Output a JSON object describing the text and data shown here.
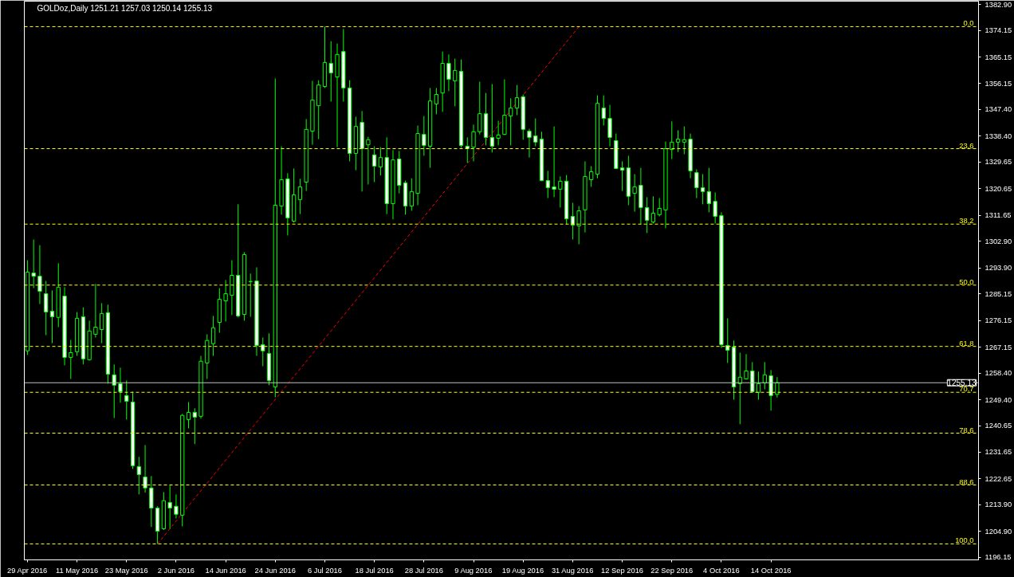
{
  "chart_data": {
    "type": "candlestick",
    "title": "GOLDoz,Daily  1251.21 1257.03 1250.14 1255.13",
    "color": "#00ff00",
    "categories": [
      "29 Apr 2016",
      null,
      null,
      null,
      null,
      null,
      null,
      null,
      "11 May 2016",
      null,
      null,
      null,
      null,
      null,
      null,
      null,
      "23 May 2016",
      null,
      null,
      null,
      null,
      null,
      null,
      null,
      "2 Jun 2016",
      null,
      null,
      null,
      null,
      null,
      null,
      null,
      "14 Jun 2016",
      null,
      null,
      null,
      null,
      null,
      null,
      null,
      "24 Jun 2016",
      null,
      null,
      null,
      null,
      null,
      null,
      null,
      "6 Jul 2016",
      null,
      null,
      null,
      null,
      null,
      null,
      null,
      "18 Jul 2016",
      null,
      null,
      null,
      null,
      null,
      null,
      null,
      "28 Jul 2016",
      null,
      null,
      null,
      null,
      null,
      null,
      null,
      "9 Aug 2016",
      null,
      null,
      null,
      null,
      null,
      null,
      null,
      "19 Aug 2016",
      null,
      null,
      null,
      null,
      null,
      null,
      null,
      "31 Aug 2016",
      null,
      null,
      null,
      null,
      null,
      null,
      null,
      "12 Sep 2016",
      null,
      null,
      null,
      null,
      null,
      null,
      null,
      "22 Sep 2016",
      null,
      null,
      null,
      null,
      null,
      null,
      null,
      "4 Oct 2016",
      null,
      null,
      null,
      null,
      null,
      null,
      null,
      "14 Oct 2016",
      null,
      null,
      null,
      null,
      null,
      null,
      null,
      null,
      null,
      null,
      null,
      null,
      null,
      null,
      null,
      null,
      null,
      null,
      null,
      null,
      null,
      null,
      null,
      null,
      null,
      null,
      null,
      null,
      null,
      null,
      null,
      null,
      null
    ],
    "ohlc": [
      [
        1265.9,
        1296.5,
        1264.5,
        1292.5
      ],
      [
        1292.2,
        1303.5,
        1287.1,
        1291.1
      ],
      [
        1291.1,
        1301.6,
        1281.7,
        1286.0
      ],
      [
        1285.2,
        1289.5,
        1271.2,
        1279.0
      ],
      [
        1279.3,
        1286.3,
        1268.5,
        1277.4
      ],
      [
        1277.2,
        1295.5,
        1273.9,
        1287.4
      ],
      [
        1284.4,
        1287.4,
        1261.0,
        1263.7
      ],
      [
        1263.7,
        1269.6,
        1256.4,
        1265.3
      ],
      [
        1265.6,
        1279.0,
        1264.2,
        1276.9
      ],
      [
        1277.4,
        1280.6,
        1261.3,
        1263.2
      ],
      [
        1262.9,
        1276.1,
        1262.6,
        1272.6
      ],
      [
        1271.5,
        1288.5,
        1270.4,
        1273.9
      ],
      [
        1273.1,
        1282.0,
        1268.5,
        1278.5
      ],
      [
        1278.8,
        1281.5,
        1254.8,
        1258.0
      ],
      [
        1257.8,
        1261.3,
        1243.2,
        1254.3
      ],
      [
        1254.8,
        1260.2,
        1248.4,
        1252.1
      ],
      [
        1250.8,
        1255.9,
        1242.7,
        1248.9
      ],
      [
        1248.6,
        1252.1,
        1226.0,
        1227.1
      ],
      [
        1226.8,
        1230.1,
        1217.4,
        1224.1
      ],
      [
        1223.3,
        1234.1,
        1218.0,
        1219.6
      ],
      [
        1219.6,
        1223.6,
        1206.4,
        1212.8
      ],
      [
        1212.8,
        1213.4,
        1200.7,
        1205.0
      ],
      [
        1205.8,
        1218.2,
        1205.4,
        1215.3
      ],
      [
        1214.7,
        1220.4,
        1205.8,
        1212.8
      ],
      [
        1213.4,
        1217.4,
        1209.3,
        1210.7
      ],
      [
        1210.4,
        1244.6,
        1206.6,
        1244.1
      ],
      [
        1242.7,
        1248.6,
        1239.7,
        1245.1
      ],
      [
        1245.1,
        1246.5,
        1234.4,
        1243.5
      ],
      [
        1243.8,
        1264.2,
        1243.0,
        1262.4
      ],
      [
        1261.8,
        1271.5,
        1256.4,
        1269.4
      ],
      [
        1268.3,
        1277.7,
        1264.2,
        1273.7
      ],
      [
        1275.5,
        1287.1,
        1272.0,
        1283.3
      ],
      [
        1282.8,
        1289.8,
        1275.8,
        1285.2
      ],
      [
        1284.7,
        1296.5,
        1278.0,
        1291.4
      ],
      [
        1291.4,
        1315.4,
        1277.2,
        1277.7
      ],
      [
        1278.2,
        1299.2,
        1276.1,
        1298.4
      ],
      [
        1289.3,
        1292.0,
        1277.4,
        1289.3
      ],
      [
        1289.5,
        1294.1,
        1264.2,
        1267.7
      ],
      [
        1268.0,
        1270.4,
        1260.7,
        1265.9
      ],
      [
        1265.0,
        1271.8,
        1254.3,
        1255.9
      ],
      [
        1253.7,
        1357.9,
        1250.2,
        1315.1
      ],
      [
        1314.8,
        1335.0,
        1311.9,
        1323.7
      ],
      [
        1324.0,
        1325.9,
        1304.9,
        1310.8
      ],
      [
        1309.7,
        1327.5,
        1309.2,
        1318.6
      ],
      [
        1317.0,
        1324.0,
        1312.1,
        1321.3
      ],
      [
        1322.9,
        1344.2,
        1319.9,
        1340.7
      ],
      [
        1340.1,
        1357.1,
        1335.5,
        1350.6
      ],
      [
        1348.7,
        1357.3,
        1337.4,
        1355.7
      ],
      [
        1355.2,
        1375.4,
        1354.7,
        1363.3
      ],
      [
        1363.0,
        1370.5,
        1350.1,
        1359.8
      ],
      [
        1358.4,
        1369.7,
        1334.7,
        1366.0
      ],
      [
        1367.0,
        1374.6,
        1350.1,
        1354.7
      ],
      [
        1354.7,
        1357.3,
        1329.9,
        1332.6
      ],
      [
        1332.6,
        1345.0,
        1326.9,
        1341.7
      ],
      [
        1343.1,
        1346.9,
        1319.7,
        1334.2
      ],
      [
        1335.5,
        1338.2,
        1322.1,
        1337.2
      ],
      [
        1332.1,
        1335.0,
        1322.9,
        1328.3
      ],
      [
        1328.0,
        1334.7,
        1325.1,
        1331.2
      ],
      [
        1331.2,
        1338.0,
        1312.1,
        1315.6
      ],
      [
        1315.6,
        1333.7,
        1310.3,
        1330.4
      ],
      [
        1330.7,
        1333.4,
        1319.1,
        1321.8
      ],
      [
        1322.6,
        1323.4,
        1311.9,
        1314.8
      ],
      [
        1314.8,
        1324.2,
        1313.2,
        1319.7
      ],
      [
        1319.1,
        1342.0,
        1315.1,
        1339.3
      ],
      [
        1339.0,
        1345.2,
        1331.8,
        1335.3
      ],
      [
        1335.0,
        1354.7,
        1327.7,
        1350.3
      ],
      [
        1349.3,
        1354.7,
        1345.8,
        1352.5
      ],
      [
        1353.0,
        1367.0,
        1346.6,
        1363.0
      ],
      [
        1363.0,
        1366.0,
        1353.6,
        1357.6
      ],
      [
        1357.1,
        1364.6,
        1348.5,
        1360.6
      ],
      [
        1360.3,
        1364.3,
        1334.5,
        1335.3
      ],
      [
        1335.0,
        1338.0,
        1329.4,
        1334.2
      ],
      [
        1334.7,
        1342.3,
        1329.9,
        1339.9
      ],
      [
        1339.9,
        1356.8,
        1339.0,
        1346.0
      ],
      [
        1346.0,
        1353.0,
        1335.3,
        1338.0
      ],
      [
        1338.0,
        1356.0,
        1332.9,
        1335.0
      ],
      [
        1337.7,
        1343.6,
        1335.3,
        1338.8
      ],
      [
        1339.0,
        1357.6,
        1338.8,
        1345.5
      ],
      [
        1345.2,
        1351.2,
        1335.3,
        1347.9
      ],
      [
        1347.9,
        1355.7,
        1345.5,
        1351.4
      ],
      [
        1351.7,
        1352.5,
        1337.2,
        1340.7
      ],
      [
        1340.1,
        1340.9,
        1331.2,
        1338.0
      ],
      [
        1338.5,
        1344.4,
        1335.0,
        1336.4
      ],
      [
        1337.4,
        1339.9,
        1323.2,
        1323.4
      ],
      [
        1323.4,
        1326.7,
        1317.5,
        1321.0
      ],
      [
        1321.3,
        1341.7,
        1317.8,
        1320.5
      ],
      [
        1320.5,
        1324.8,
        1314.3,
        1323.2
      ],
      [
        1323.2,
        1325.3,
        1308.6,
        1310.5
      ],
      [
        1311.3,
        1315.9,
        1303.5,
        1308.4
      ],
      [
        1308.1,
        1314.8,
        1301.9,
        1313.2
      ],
      [
        1313.5,
        1329.9,
        1305.9,
        1324.8
      ],
      [
        1323.7,
        1328.3,
        1321.3,
        1326.4
      ],
      [
        1325.6,
        1352.2,
        1324.2,
        1349.5
      ],
      [
        1347.9,
        1352.2,
        1342.0,
        1344.4
      ],
      [
        1344.4,
        1349.0,
        1335.0,
        1338.0
      ],
      [
        1336.9,
        1339.3,
        1327.5,
        1327.5
      ],
      [
        1327.7,
        1329.9,
        1319.9,
        1326.9
      ],
      [
        1327.7,
        1331.8,
        1315.1,
        1318.1
      ],
      [
        1319.1,
        1325.6,
        1312.9,
        1321.3
      ],
      [
        1321.8,
        1327.7,
        1308.6,
        1314.3
      ],
      [
        1314.3,
        1317.8,
        1305.7,
        1310.0
      ],
      [
        1309.4,
        1318.1,
        1308.9,
        1312.4
      ],
      [
        1311.9,
        1317.5,
        1311.3,
        1314.0
      ],
      [
        1313.5,
        1336.6,
        1307.3,
        1334.2
      ],
      [
        1333.9,
        1343.4,
        1330.7,
        1336.4
      ],
      [
        1336.4,
        1340.4,
        1333.1,
        1337.4
      ],
      [
        1336.4,
        1341.7,
        1332.3,
        1337.2
      ],
      [
        1337.4,
        1339.3,
        1324.2,
        1326.7
      ],
      [
        1326.1,
        1327.2,
        1317.5,
        1321.0
      ],
      [
        1321.0,
        1325.6,
        1315.4,
        1319.7
      ],
      [
        1319.7,
        1327.7,
        1312.7,
        1315.6
      ],
      [
        1316.4,
        1319.4,
        1308.9,
        1311.3
      ],
      [
        1311.6,
        1312.7,
        1266.9,
        1268.0
      ],
      [
        1267.7,
        1276.9,
        1261.8,
        1266.1
      ],
      [
        1267.2,
        1269.4,
        1249.4,
        1253.7
      ],
      [
        1254.8,
        1265.3,
        1241.1,
        1257.0
      ],
      [
        1256.4,
        1264.8,
        1256.2,
        1259.1
      ],
      [
        1259.1,
        1262.1,
        1252.1,
        1252.1
      ],
      [
        1251.9,
        1258.9,
        1249.4,
        1254.8
      ],
      [
        1255.1,
        1262.1,
        1252.9,
        1257.8
      ],
      [
        1257.5,
        1259.4,
        1245.7,
        1250.8
      ],
      [
        1251.21,
        1257.03,
        1250.14,
        1255.13
      ],
      null,
      null,
      null,
      null,
      null,
      null,
      null,
      null,
      null,
      null,
      null,
      null,
      null,
      null,
      null,
      null,
      null,
      null,
      null,
      null,
      null,
      null,
      null,
      null,
      null,
      null,
      null,
      null,
      null,
      null,
      null,
      null
    ],
    "series": [
      {
        "type": "line",
        "color": "#ff0000",
        "line_style": "dashed",
        "values": [
          null,
          null,
          null,
          null,
          null,
          null,
          null,
          null,
          null,
          null,
          null,
          null,
          null,
          null,
          null,
          null,
          null,
          null,
          null,
          null,
          null,
          1200.7,
          null,
          null,
          null,
          null,
          null,
          null,
          null,
          null,
          null,
          null,
          null,
          null,
          null,
          null,
          null,
          null,
          null,
          null,
          null,
          null,
          null,
          null,
          null,
          null,
          null,
          null,
          null,
          null,
          null,
          null,
          null,
          null,
          null,
          null,
          null,
          null,
          null,
          null,
          null,
          null,
          null,
          null,
          null,
          null,
          null,
          null,
          null,
          null,
          null,
          null,
          null,
          null,
          null,
          null,
          null,
          null,
          null,
          null,
          null,
          null,
          null,
          null,
          null,
          null,
          null,
          null,
          null,
          1375.4,
          null,
          null,
          null,
          null,
          null,
          null,
          null,
          null,
          null,
          null,
          null,
          null,
          null,
          null,
          null,
          null,
          null,
          null,
          null,
          null,
          null,
          null,
          null,
          null,
          null,
          null,
          null,
          null,
          null,
          null,
          null,
          null,
          null,
          null,
          null,
          null,
          null,
          null,
          null,
          null,
          null,
          null,
          null,
          null,
          null,
          null,
          null,
          null,
          null,
          null,
          null,
          null,
          null,
          null,
          null,
          null,
          null,
          null,
          null,
          null,
          null,
          null,
          null,
          null
        ]
      }
    ],
    "ref_lines": [
      {
        "axis": "y",
        "value": 1375.4,
        "color": "#ffff00",
        "line_style": "dashed"
      },
      {
        "axis": "y",
        "value": 1334.2,
        "color": "#ffff00",
        "line_style": "dashed"
      },
      {
        "axis": "y",
        "value": 1308.7,
        "color": "#ffff00",
        "line_style": "dashed"
      },
      {
        "axis": "y",
        "value": 1288.1,
        "color": "#ffff00",
        "line_style": "dashed"
      },
      {
        "axis": "y",
        "value": 1267.4,
        "color": "#ffff00",
        "line_style": "dashed"
      },
      {
        "axis": "y",
        "value": 1251.9,
        "color": "#ffff00",
        "line_style": "dashed"
      },
      {
        "axis": "y",
        "value": 1238.1,
        "color": "#ffff00",
        "line_style": "dashed"
      },
      {
        "axis": "y",
        "value": 1220.6,
        "color": "#ffff00",
        "line_style": "dashed"
      },
      {
        "axis": "y",
        "value": 1200.7,
        "color": "#ffff00",
        "line_style": "dashed"
      },
      {
        "axis": "y",
        "value": 1255.13,
        "label": "1255.13",
        "color": "#c0c0c0",
        "line_style": "solid"
      }
    ],
    "annotations": [
      {
        "text": "0.0",
        "y": 1375.4
      },
      {
        "text": "23.6",
        "y": 1334.2
      },
      {
        "text": "38.2",
        "y": 1308.7
      },
      {
        "text": "50.0",
        "y": 1288.1
      },
      {
        "text": "61.8",
        "y": 1267.4
      },
      {
        "text": "70.7",
        "y": 1251.9
      },
      {
        "text": "78.6",
        "y": 1238.1
      },
      {
        "text": "88.6",
        "y": 1220.6
      },
      {
        "text": "100.0",
        "y": 1200.7
      }
    ],
    "ylim": [
      1195.3,
      1384.0
    ],
    "yticks": [
      1196.15,
      {
        "value": 1204.9,
        "label": "1204.90"
      },
      {
        "value": 1213.9,
        "label": "1213.90"
      },
      1222.65,
      1231.65,
      1240.65,
      {
        "value": 1249.4,
        "label": "1249.40"
      },
      {
        "value": 1258.4,
        "label": "1258.40"
      },
      1267.15,
      1276.15,
      1285.15,
      {
        "value": 1293.9,
        "label": "1293.90"
      },
      {
        "value": 1302.9,
        "label": "1302.90"
      },
      1311.65,
      1320.65,
      1329.65,
      {
        "value": 1338.4,
        "label": "1338.40"
      },
      {
        "value": 1347.4,
        "label": "1347.40"
      },
      1356.15,
      1365.15,
      1374.15,
      {
        "value": 1382.9,
        "label": "1382.90"
      }
    ],
    "grid": false
  }
}
